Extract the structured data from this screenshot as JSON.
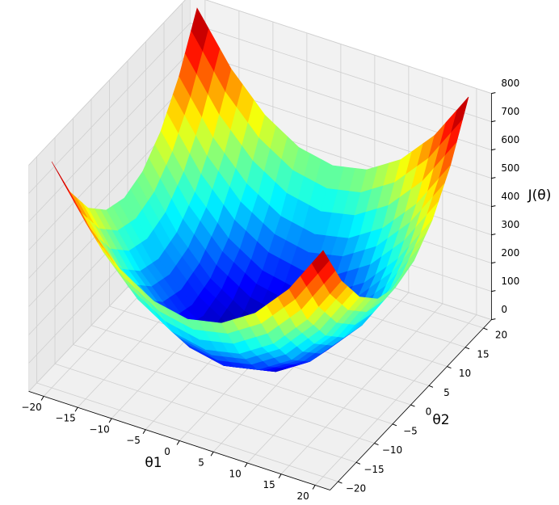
{
  "chart_data": {
    "type": "surface3d",
    "xlabel": "θ1",
    "ylabel": "θ2",
    "zlabel": "J(θ)",
    "x": [
      -20,
      -15,
      -10,
      -5,
      0,
      5,
      10,
      15,
      20
    ],
    "y": [
      -20,
      -15,
      -10,
      -5,
      0,
      5,
      10,
      15,
      20
    ],
    "z": [
      [
        800,
        625,
        500,
        425,
        400,
        425,
        500,
        625,
        800
      ],
      [
        625,
        450,
        325,
        250,
        225,
        250,
        325,
        450,
        625
      ],
      [
        500,
        325,
        200,
        125,
        100,
        125,
        200,
        325,
        500
      ],
      [
        425,
        250,
        125,
        50,
        25,
        50,
        125,
        250,
        425
      ],
      [
        400,
        225,
        100,
        25,
        0,
        25,
        100,
        225,
        400
      ],
      [
        425,
        250,
        125,
        50,
        25,
        50,
        125,
        250,
        425
      ],
      [
        500,
        325,
        200,
        125,
        100,
        125,
        200,
        325,
        500
      ],
      [
        625,
        450,
        325,
        250,
        225,
        250,
        325,
        450,
        625
      ],
      [
        800,
        625,
        500,
        425,
        400,
        425,
        500,
        625,
        800
      ]
    ],
    "colormap": "jet",
    "xlim": [
      -20,
      20
    ],
    "ylim": [
      -20,
      20
    ],
    "zlim": [
      0,
      800
    ],
    "xticks": [
      {
        "value": -20,
        "label": "−20"
      },
      {
        "value": -15,
        "label": "−15"
      },
      {
        "value": -10,
        "label": "−10"
      },
      {
        "value": -5,
        "label": "−5"
      },
      0,
      5,
      10,
      15,
      20
    ],
    "yticks": [
      {
        "value": -20,
        "label": "−20"
      },
      {
        "value": -15,
        "label": "−15"
      },
      {
        "value": -10,
        "label": "−10"
      },
      {
        "value": -5,
        "label": "−5"
      },
      0,
      5,
      10,
      15,
      20
    ],
    "zticks": [
      0,
      100,
      200,
      300,
      400,
      500,
      600,
      700,
      800
    ],
    "grid": true
  }
}
